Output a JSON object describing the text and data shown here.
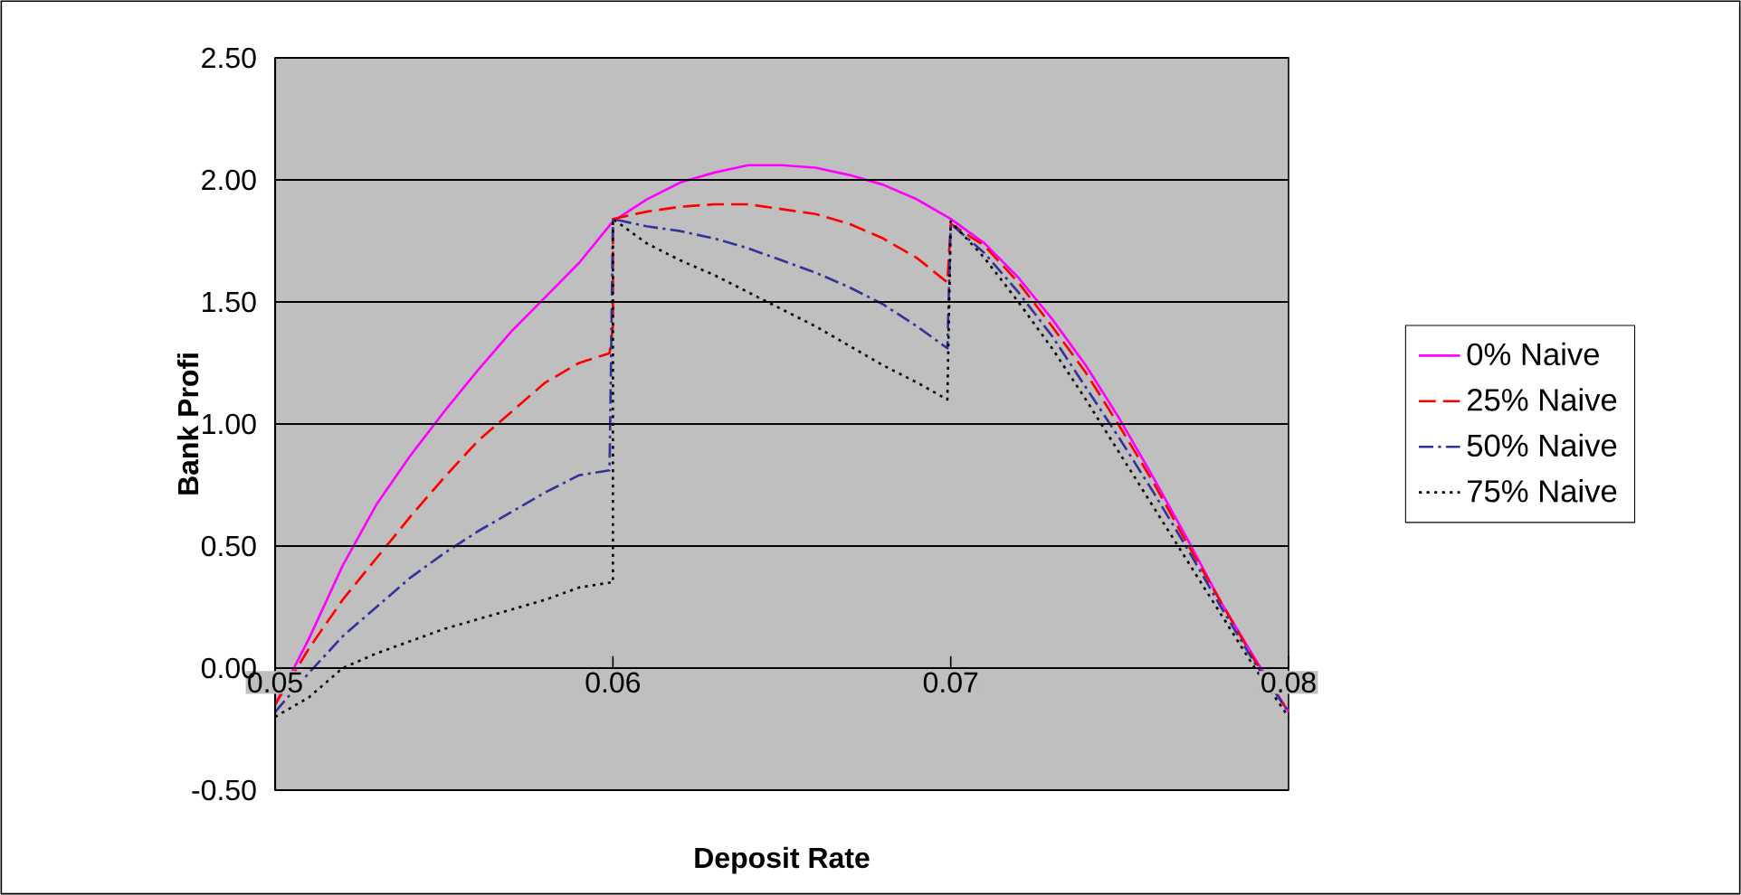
{
  "chart_data": {
    "type": "line",
    "xlabel": "Deposit Rate",
    "ylabel": "Bank Profi",
    "xlim": [
      0.05,
      0.08
    ],
    "xticks": [
      0.05,
      0.06,
      0.07,
      0.08
    ],
    "ylim": [
      -0.5,
      2.5
    ],
    "yticks": [
      {
        "value": -0.5,
        "label": "-0.50"
      },
      {
        "value": 0,
        "label": "0.00"
      },
      {
        "value": 0.5,
        "label": "0.50"
      },
      {
        "value": 1,
        "label": "1.00"
      },
      {
        "value": 1.5,
        "label": "1.50"
      },
      {
        "value": 2,
        "label": "2.00"
      },
      {
        "value": 2.5,
        "label": "2.50"
      }
    ],
    "grid": "y",
    "legend": "right",
    "series": [
      {
        "name": "0% Naive",
        "color": "#ff00ff",
        "line_style": "solid",
        "x": [
          0.05,
          0.051,
          0.052,
          0.053,
          0.054,
          0.055,
          0.056,
          0.057,
          0.058,
          0.059,
          0.06,
          0.061,
          0.062,
          0.063,
          0.064,
          0.065,
          0.066,
          0.067,
          0.068,
          0.069,
          0.07,
          0.071,
          0.072,
          0.073,
          0.074,
          0.075,
          0.076,
          0.077,
          0.078,
          0.079,
          0.08
        ],
        "values": [
          -0.15,
          0.12,
          0.42,
          0.67,
          0.87,
          1.05,
          1.22,
          1.38,
          1.52,
          1.66,
          1.83,
          1.92,
          1.99,
          2.03,
          2.06,
          2.06,
          2.05,
          2.02,
          1.98,
          1.92,
          1.84,
          1.74,
          1.6,
          1.43,
          1.24,
          1.02,
          0.78,
          0.53,
          0.27,
          0.04,
          -0.18
        ]
      },
      {
        "name": "25% Naive",
        "color": "#ff0000",
        "line_style": "dashed",
        "x": [
          0.05,
          0.051,
          0.052,
          0.053,
          0.054,
          0.055,
          0.056,
          0.057,
          0.058,
          0.059,
          0.0599,
          0.06,
          0.06,
          0.061,
          0.062,
          0.063,
          0.064,
          0.065,
          0.066,
          0.067,
          0.068,
          0.069,
          0.0699,
          0.07,
          0.071,
          0.072,
          0.073,
          0.074,
          0.075,
          0.076,
          0.077,
          0.078,
          0.079,
          0.08
        ],
        "values": [
          -0.15,
          0.08,
          0.28,
          0.45,
          0.62,
          0.78,
          0.93,
          1.05,
          1.17,
          1.25,
          1.29,
          1.4,
          1.84,
          1.87,
          1.89,
          1.9,
          1.9,
          1.88,
          1.86,
          1.82,
          1.76,
          1.68,
          1.58,
          1.82,
          1.73,
          1.58,
          1.4,
          1.21,
          0.99,
          0.76,
          0.51,
          0.27,
          0.03,
          -0.18
        ]
      },
      {
        "name": "50% Naive",
        "color": "#333399",
        "line_style": "dashdot",
        "x": [
          0.05,
          0.051,
          0.052,
          0.053,
          0.054,
          0.055,
          0.056,
          0.057,
          0.058,
          0.059,
          0.0599,
          0.06,
          0.061,
          0.062,
          0.063,
          0.064,
          0.065,
          0.066,
          0.067,
          0.068,
          0.069,
          0.0699,
          0.07,
          0.071,
          0.072,
          0.073,
          0.074,
          0.075,
          0.076,
          0.077,
          0.078,
          0.079,
          0.08
        ],
        "values": [
          -0.18,
          -0.02,
          0.13,
          0.25,
          0.37,
          0.47,
          0.56,
          0.64,
          0.72,
          0.79,
          0.81,
          1.84,
          1.81,
          1.79,
          1.76,
          1.72,
          1.67,
          1.62,
          1.56,
          1.49,
          1.4,
          1.31,
          1.82,
          1.7,
          1.54,
          1.36,
          1.15,
          0.94,
          0.72,
          0.49,
          0.25,
          0.02,
          -0.18
        ]
      },
      {
        "name": "75% Naive",
        "color": "#000000",
        "line_style": "dotted",
        "x": [
          0.05,
          0.051,
          0.052,
          0.053,
          0.054,
          0.055,
          0.056,
          0.057,
          0.058,
          0.059,
          0.0599,
          0.06,
          0.06,
          0.061,
          0.062,
          0.063,
          0.064,
          0.065,
          0.066,
          0.067,
          0.068,
          0.069,
          0.0699,
          0.07,
          0.071,
          0.072,
          0.073,
          0.074,
          0.075,
          0.076,
          0.077,
          0.078,
          0.079,
          0.08
        ],
        "values": [
          -0.2,
          -0.12,
          0.0,
          0.06,
          0.11,
          0.16,
          0.2,
          0.24,
          0.28,
          0.33,
          0.35,
          0.35,
          1.84,
          1.74,
          1.67,
          1.61,
          1.54,
          1.47,
          1.4,
          1.32,
          1.24,
          1.17,
          1.1,
          1.83,
          1.68,
          1.5,
          1.31,
          1.1,
          0.88,
          0.66,
          0.44,
          0.22,
          0.0,
          -0.2
        ]
      }
    ]
  }
}
